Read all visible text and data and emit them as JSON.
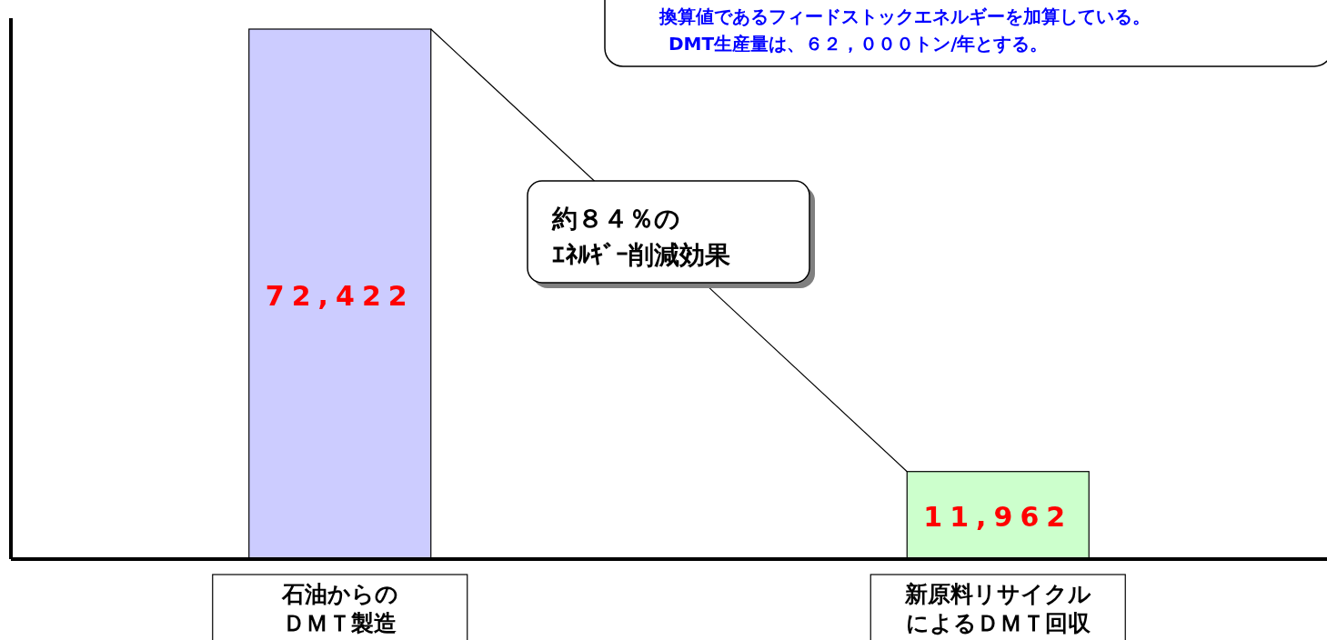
{
  "chart_data": {
    "type": "bar",
    "categories": [
      "石油からのＤＭＴ製造",
      "新原料リサイクルによるＤＭＴ回収"
    ],
    "values": [
      72422,
      11962
    ],
    "colors": [
      "#ccccff",
      "#ccffcc"
    ],
    "value_labels": [
      "72,422",
      "11,962"
    ],
    "annotations": [
      "換算値であるフィードストックエネルギーを加算している。DMT生産量は、６２，０００トン/年とする。",
      "約８４％のｴﾈﾙｷﾞｰ削減効果"
    ]
  }
}
